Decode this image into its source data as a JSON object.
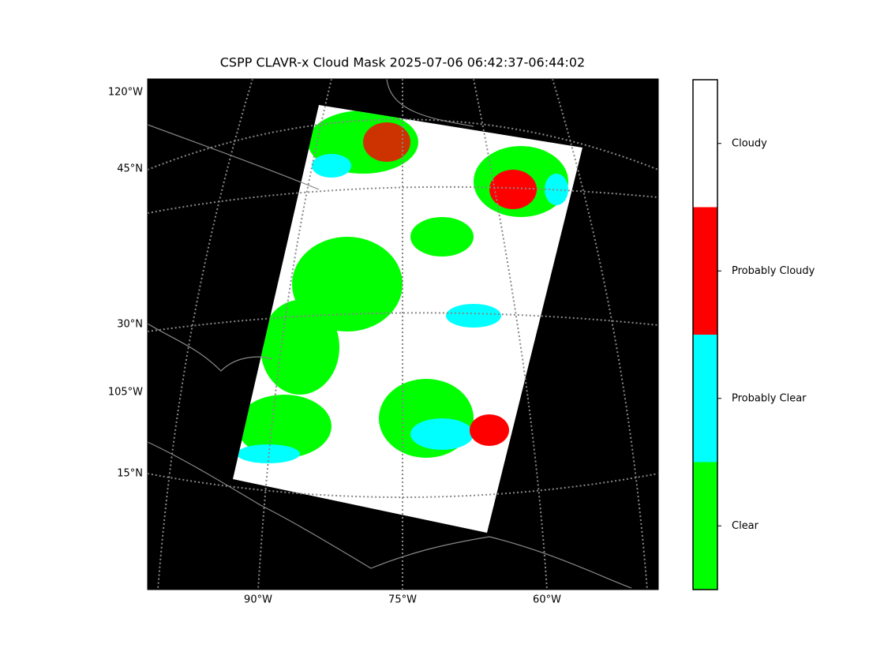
{
  "title": "CSPP CLAVR-x Cloud Mask 2025-07-06 06:42:37-06:44:02",
  "left_labels": [
    "120°W",
    "45°N",
    "30°N",
    "105°W",
    "15°N"
  ],
  "bottom_labels": [
    "90°W",
    "75°W",
    "60°W"
  ],
  "colorbar": [
    {
      "label": "Cloudy",
      "color": "#ffffff"
    },
    {
      "label": "Probably Cloudy",
      "color": "#ff0000"
    },
    {
      "label": "Probably Clear",
      "color": "#00ffff"
    },
    {
      "label": "Clear",
      "color": "#00ff00"
    }
  ]
}
